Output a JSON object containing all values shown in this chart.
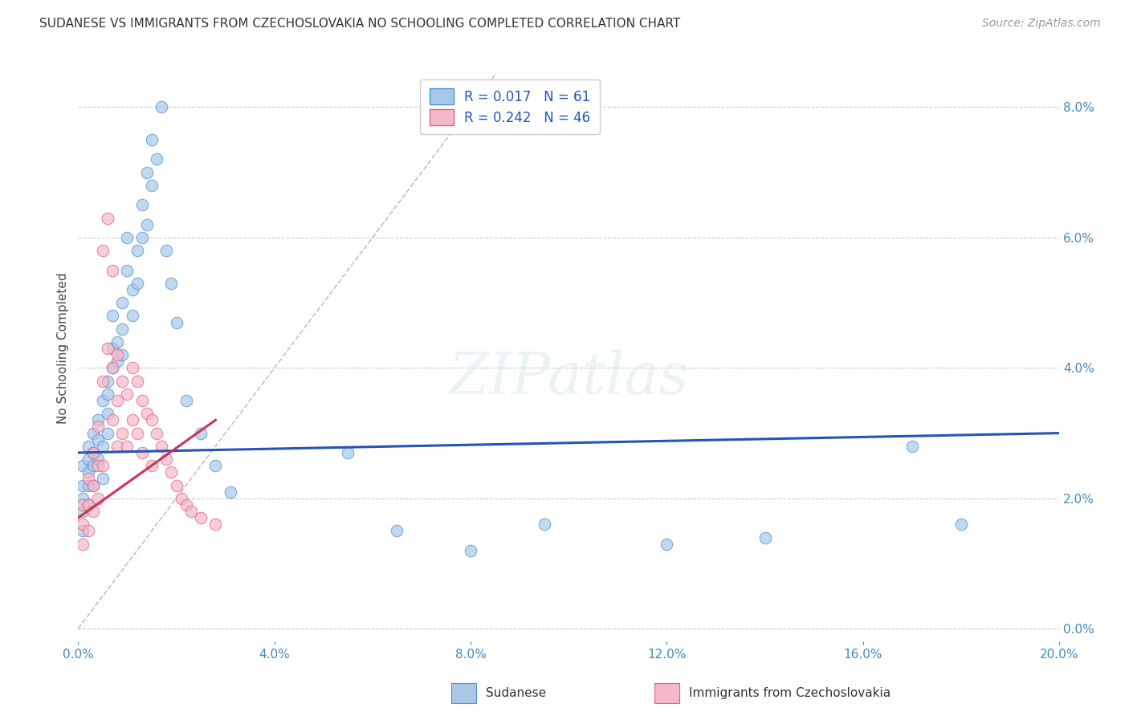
{
  "title": "SUDANESE VS IMMIGRANTS FROM CZECHOSLOVAKIA NO SCHOOLING COMPLETED CORRELATION CHART",
  "source": "Source: ZipAtlas.com",
  "ylabel": "No Schooling Completed",
  "legend_label1": "Sudanese",
  "legend_label2": "Immigrants from Czechoslovakia",
  "r1": 0.017,
  "n1": 61,
  "r2": 0.242,
  "n2": 46,
  "xlim": [
    0.0,
    0.2
  ],
  "ylim": [
    -0.002,
    0.088
  ],
  "xticks": [
    0.0,
    0.04,
    0.08,
    0.12,
    0.16,
    0.2
  ],
  "yticks": [
    0.0,
    0.02,
    0.04,
    0.06,
    0.08
  ],
  "color_blue": "#a8c8e8",
  "color_pink": "#f4b8c8",
  "edge_blue": "#5090d0",
  "edge_pink": "#e06080",
  "trend_blue": "#2255bb",
  "trend_pink": "#cc3355",
  "diag_color": "#ddaabb",
  "blue_points_x": [
    0.001,
    0.001,
    0.001,
    0.001,
    0.001,
    0.002,
    0.002,
    0.002,
    0.002,
    0.002,
    0.003,
    0.003,
    0.003,
    0.003,
    0.004,
    0.004,
    0.004,
    0.005,
    0.005,
    0.005,
    0.006,
    0.006,
    0.006,
    0.006,
    0.007,
    0.007,
    0.007,
    0.008,
    0.008,
    0.009,
    0.009,
    0.009,
    0.01,
    0.01,
    0.011,
    0.011,
    0.012,
    0.012,
    0.013,
    0.013,
    0.014,
    0.014,
    0.015,
    0.015,
    0.016,
    0.017,
    0.018,
    0.019,
    0.02,
    0.022,
    0.025,
    0.028,
    0.031,
    0.055,
    0.065,
    0.08,
    0.095,
    0.12,
    0.14,
    0.17,
    0.18
  ],
  "blue_points_y": [
    0.025,
    0.022,
    0.02,
    0.018,
    0.015,
    0.028,
    0.026,
    0.024,
    0.022,
    0.019,
    0.03,
    0.027,
    0.025,
    0.022,
    0.032,
    0.029,
    0.026,
    0.035,
    0.028,
    0.023,
    0.038,
    0.036,
    0.033,
    0.03,
    0.043,
    0.048,
    0.04,
    0.044,
    0.041,
    0.05,
    0.046,
    0.042,
    0.06,
    0.055,
    0.052,
    0.048,
    0.058,
    0.053,
    0.065,
    0.06,
    0.07,
    0.062,
    0.075,
    0.068,
    0.072,
    0.08,
    0.058,
    0.053,
    0.047,
    0.035,
    0.03,
    0.025,
    0.021,
    0.027,
    0.015,
    0.012,
    0.016,
    0.013,
    0.014,
    0.028,
    0.016
  ],
  "pink_points_x": [
    0.001,
    0.001,
    0.001,
    0.002,
    0.002,
    0.002,
    0.003,
    0.003,
    0.003,
    0.004,
    0.004,
    0.004,
    0.005,
    0.005,
    0.005,
    0.006,
    0.006,
    0.007,
    0.007,
    0.007,
    0.008,
    0.008,
    0.008,
    0.009,
    0.009,
    0.01,
    0.01,
    0.011,
    0.011,
    0.012,
    0.012,
    0.013,
    0.013,
    0.014,
    0.015,
    0.015,
    0.016,
    0.017,
    0.018,
    0.019,
    0.02,
    0.021,
    0.022,
    0.023,
    0.025,
    0.028
  ],
  "pink_points_y": [
    0.019,
    0.016,
    0.013,
    0.023,
    0.019,
    0.015,
    0.027,
    0.022,
    0.018,
    0.031,
    0.025,
    0.02,
    0.058,
    0.038,
    0.025,
    0.063,
    0.043,
    0.055,
    0.04,
    0.032,
    0.042,
    0.035,
    0.028,
    0.038,
    0.03,
    0.036,
    0.028,
    0.04,
    0.032,
    0.038,
    0.03,
    0.035,
    0.027,
    0.033,
    0.032,
    0.025,
    0.03,
    0.028,
    0.026,
    0.024,
    0.022,
    0.02,
    0.019,
    0.018,
    0.017,
    0.016
  ]
}
